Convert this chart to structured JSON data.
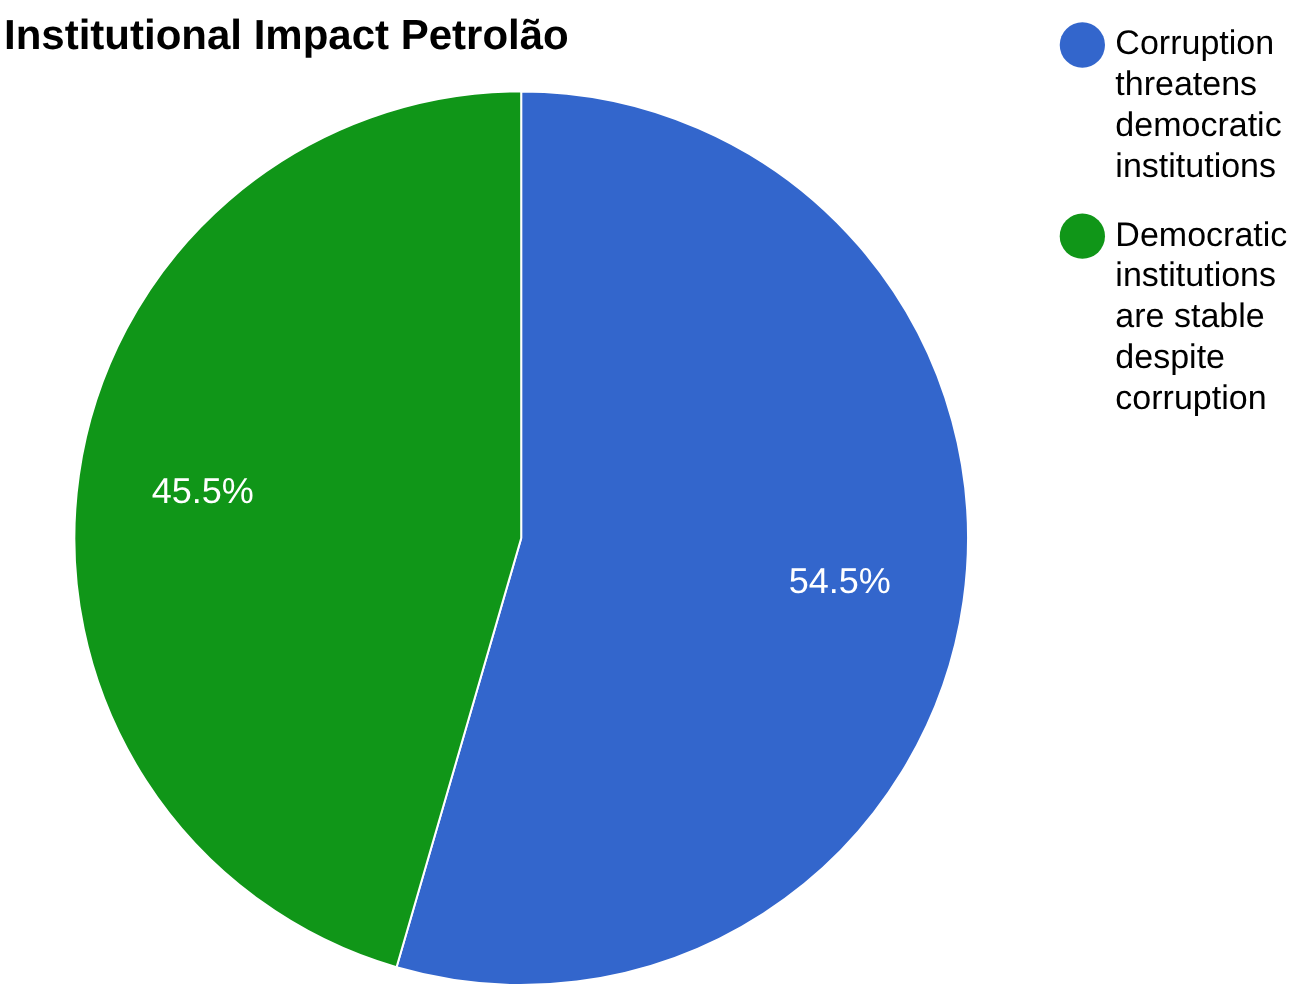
{
  "chart_data": {
    "type": "pie",
    "title": "Institutional Impact Petrolão",
    "categories": [
      "Corruption threatens democratic institutions",
      "Democratic institutions are stable despite corruption"
    ],
    "values": [
      54.5,
      45.5
    ],
    "colors": [
      "#3366cc",
      "#109618"
    ],
    "value_labels": [
      "54.5%",
      "45.5%"
    ],
    "legend": "right"
  }
}
